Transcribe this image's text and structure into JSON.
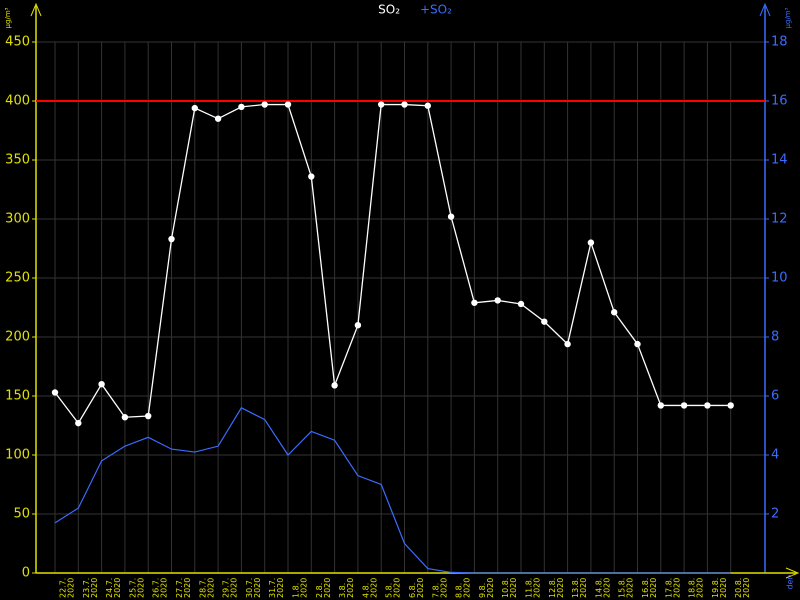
{
  "chart_data": {
    "type": "line",
    "title": "SO₂",
    "y_unit_label": "µg/m³",
    "x_unit_label": "den",
    "year": "2020",
    "categories": [
      "22.7.",
      "23.7.",
      "24.7.",
      "25.7.",
      "26.7.",
      "27.7.",
      "28.7.",
      "29.7.",
      "30.7.",
      "31.7.",
      "1.8.",
      "2.8.",
      "3.8.",
      "4.8.",
      "5.8.",
      "6.8.",
      "7.8.",
      "8.8.",
      "9.8.",
      "10.8.",
      "11.8.",
      "12.8.",
      "13.8.",
      "14.8.",
      "15.8.",
      "16.8.",
      "17.8.",
      "18.8.",
      "19.8.",
      "20.8."
    ],
    "series": [
      {
        "name": "SO₂",
        "color": "#ffffff",
        "axis": "y",
        "values": [
          153,
          127,
          160,
          132,
          133,
          283,
          394,
          385,
          395,
          397,
          397,
          336,
          159,
          210,
          397,
          397,
          396,
          302,
          229,
          231,
          228,
          213,
          194,
          280,
          221,
          194,
          142,
          142,
          142,
          142
        ]
      },
      {
        "name": "+SO₂",
        "color": "#3b6cff",
        "axis": "y2",
        "values": [
          1.7,
          2.2,
          3.8,
          4.3,
          4.6,
          4.2,
          4.1,
          4.3,
          5.6,
          5.2,
          4.0,
          4.8,
          4.5,
          3.3,
          3.0,
          1.0,
          0.15,
          0.02,
          0,
          0,
          0,
          0,
          0,
          0,
          0,
          0,
          0,
          0,
          0,
          0
        ]
      }
    ],
    "threshold": {
      "value": 400,
      "color": "#ff0000"
    },
    "ylim": [
      0,
      450
    ],
    "yticks": [
      0,
      50,
      100,
      150,
      200,
      250,
      300,
      350,
      400,
      450
    ],
    "y2lim": [
      0,
      18
    ],
    "y2ticks": [
      2,
      4,
      6,
      8,
      10,
      12,
      14,
      16,
      18
    ],
    "grid": true
  }
}
